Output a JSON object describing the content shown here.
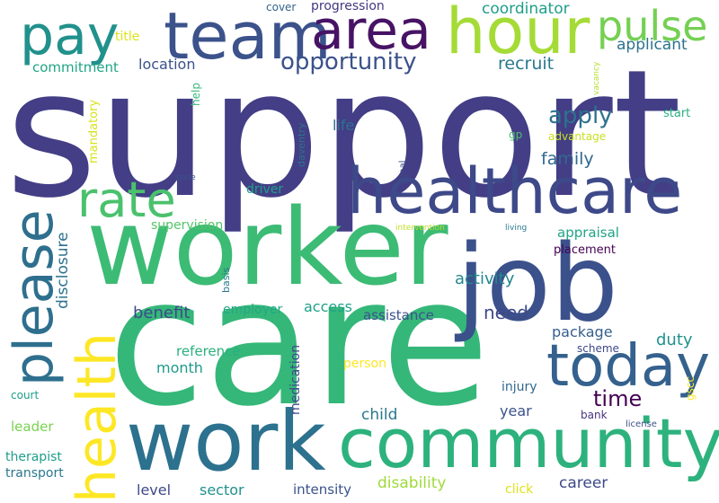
{
  "words": [
    {
      "id": "support",
      "text": "support",
      "color": "#433e85"
    },
    {
      "id": "care",
      "text": "care",
      "color": "#35b779"
    },
    {
      "id": "worker",
      "text": "worker",
      "color": "#3cbb75"
    },
    {
      "id": "job",
      "text": "job",
      "color": "#3b518b"
    },
    {
      "id": "work",
      "text": "work",
      "color": "#2c718e"
    },
    {
      "id": "community",
      "text": "community",
      "color": "#2db27d"
    },
    {
      "id": "healthcare",
      "text": "healthcare",
      "color": "#3e4989"
    },
    {
      "id": "today",
      "text": "today",
      "color": "#34618d"
    },
    {
      "id": "team",
      "text": "team",
      "color": "#3b528b"
    },
    {
      "id": "hour",
      "text": "hour",
      "color": "#a5db36"
    },
    {
      "id": "area",
      "text": "area",
      "color": "#471365"
    },
    {
      "id": "pay",
      "text": "pay",
      "color": "#21918c"
    },
    {
      "id": "pulse",
      "text": "pulse",
      "color": "#75d054"
    },
    {
      "id": "rate",
      "text": "rate",
      "color": "#4ac16d"
    },
    {
      "id": "please",
      "text": "please",
      "color": "#2e6f8e"
    },
    {
      "id": "health",
      "text": "health",
      "color": "#fde725"
    },
    {
      "id": "opportunity",
      "text": "opportunity",
      "color": "#3b528b"
    },
    {
      "id": "apply",
      "text": "apply",
      "color": "#2c728e"
    },
    {
      "id": "family",
      "text": "family",
      "color": "#31688e"
    },
    {
      "id": "time",
      "text": "time",
      "color": "#440154"
    },
    {
      "id": "need",
      "text": "need",
      "color": "#3e4989"
    },
    {
      "id": "recruit",
      "text": "recruit",
      "color": "#2a788e"
    },
    {
      "id": "coordinator",
      "text": "coordinator",
      "color": "#1f9e89"
    },
    {
      "id": "applicant",
      "text": "applicant",
      "color": "#2c728e"
    },
    {
      "id": "progression",
      "text": "progression",
      "color": "#453781"
    },
    {
      "id": "cover",
      "text": "cover",
      "color": "#33638d"
    },
    {
      "id": "title",
      "text": "title",
      "color": "#dde318"
    },
    {
      "id": "commitment",
      "text": "commitment",
      "color": "#20a486"
    },
    {
      "id": "location",
      "text": "location",
      "color": "#3b528b"
    },
    {
      "id": "life",
      "text": "life",
      "color": "#2c728e"
    },
    {
      "id": "driver",
      "text": "driver",
      "color": "#1fa088"
    },
    {
      "id": "supervision",
      "text": "supervision",
      "color": "#52c569"
    },
    {
      "id": "appraisal",
      "text": "appraisal",
      "color": "#20a486"
    },
    {
      "id": "placement",
      "text": "placement",
      "color": "#440154"
    },
    {
      "id": "activity",
      "text": "activity",
      "color": "#23888e"
    },
    {
      "id": "benefit",
      "text": "benefit",
      "color": "#3e4a89"
    },
    {
      "id": "employer",
      "text": "employer",
      "color": "#22a785"
    },
    {
      "id": "access",
      "text": "access",
      "color": "#1fa088"
    },
    {
      "id": "assistance",
      "text": "assistance",
      "color": "#3b528b"
    },
    {
      "id": "package",
      "text": "package",
      "color": "#355f8d"
    },
    {
      "id": "duty",
      "text": "duty",
      "color": "#21918c"
    },
    {
      "id": "reference",
      "text": "reference",
      "color": "#2ab07f"
    },
    {
      "id": "month",
      "text": "month",
      "color": "#1f9a8a"
    },
    {
      "id": "person",
      "text": "person",
      "color": "#fde725"
    },
    {
      "id": "scheme",
      "text": "scheme",
      "color": "#3e4989"
    },
    {
      "id": "injury",
      "text": "injury",
      "color": "#31688e"
    },
    {
      "id": "child",
      "text": "child",
      "color": "#2a788e"
    },
    {
      "id": "year",
      "text": "year",
      "color": "#3b528b"
    },
    {
      "id": "bank",
      "text": "bank",
      "color": "#46337e"
    },
    {
      "id": "court",
      "text": "court",
      "color": "#1f9e89"
    },
    {
      "id": "leader",
      "text": "leader",
      "color": "#7ad151"
    },
    {
      "id": "therapist",
      "text": "therapist",
      "color": "#1f9e89"
    },
    {
      "id": "transport",
      "text": "transport",
      "color": "#2a788e"
    },
    {
      "id": "level",
      "text": "level",
      "color": "#3e4989"
    },
    {
      "id": "sector",
      "text": "sector",
      "color": "#21918c"
    },
    {
      "id": "intensity",
      "text": "intensity",
      "color": "#3b528b"
    },
    {
      "id": "disability",
      "text": "disability",
      "color": "#9fda3a"
    },
    {
      "id": "click",
      "text": "click",
      "color": "#dde318"
    },
    {
      "id": "career",
      "text": "career",
      "color": "#3e4989"
    },
    {
      "id": "license",
      "text": "license",
      "color": "#3b528b"
    },
    {
      "id": "start",
      "text": "start",
      "color": "#2ab07f"
    },
    {
      "id": "advantage",
      "text": "advantage",
      "color": "#c8e020"
    },
    {
      "id": "gp",
      "text": "gp",
      "color": "#4ac16d"
    },
    {
      "id": "intervention",
      "text": "intervention",
      "color": "#bddf26"
    },
    {
      "id": "living",
      "text": "living",
      "color": "#2a788e"
    },
    {
      "id": "code",
      "text": "code",
      "color": "#3b528b"
    },
    {
      "id": "mandatory",
      "text": "mandatory",
      "color": "#d8e219"
    },
    {
      "id": "disclosure",
      "text": "disclosure",
      "color": "#2c728e"
    },
    {
      "id": "help",
      "text": "help",
      "color": "#35b779"
    },
    {
      "id": "daventry",
      "text": "daventry",
      "color": "#2c728e"
    },
    {
      "id": "goal",
      "text": "goal",
      "color": "#3e4989"
    },
    {
      "id": "vacancy",
      "text": "vacancy",
      "color": "#b5de2b"
    },
    {
      "id": "basis",
      "text": "basis",
      "color": "#2a788e"
    },
    {
      "id": "medication",
      "text": "medication",
      "color": "#3e4989"
    },
    {
      "id": "gscc",
      "text": "gscc",
      "color": "#fde725"
    }
  ]
}
